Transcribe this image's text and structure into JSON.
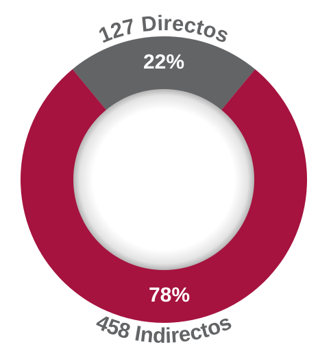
{
  "chart_data": {
    "type": "donut",
    "categories": [
      "127 Directos",
      "458 Indirectos"
    ],
    "values": [
      22,
      78
    ],
    "value_labels": [
      "22%",
      "78%"
    ],
    "colors": [
      "#636466",
      "#a6133f"
    ]
  }
}
